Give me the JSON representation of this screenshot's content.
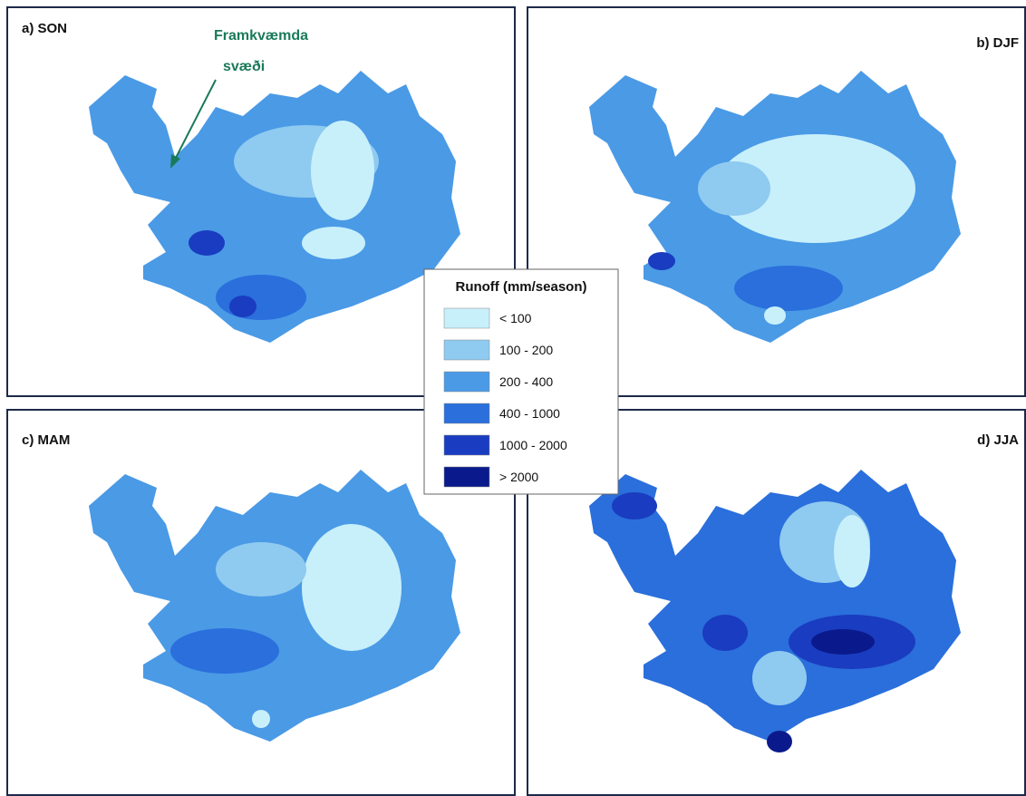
{
  "panels": [
    {
      "label": "a) SON"
    },
    {
      "label": "b) DJF"
    },
    {
      "label": "c) MAM"
    },
    {
      "label": "d) JJA"
    }
  ],
  "annotation": {
    "lines": [
      "Framkvæmda",
      "svæði"
    ]
  },
  "legend": {
    "title": "Runoff (mm/season)",
    "items": [
      {
        "label": "< 100",
        "color": "#c8f0fb"
      },
      {
        "label": "100 - 200",
        "color": "#8fcaf0"
      },
      {
        "label": "200 - 400",
        "color": "#4a9ae6"
      },
      {
        "label": "400 - 1000",
        "color": "#2a6fdc"
      },
      {
        "label": "1000 - 2000",
        "color": "#1a3cc0"
      },
      {
        "label": "> 2000",
        "color": "#0a1a8c"
      }
    ]
  }
}
